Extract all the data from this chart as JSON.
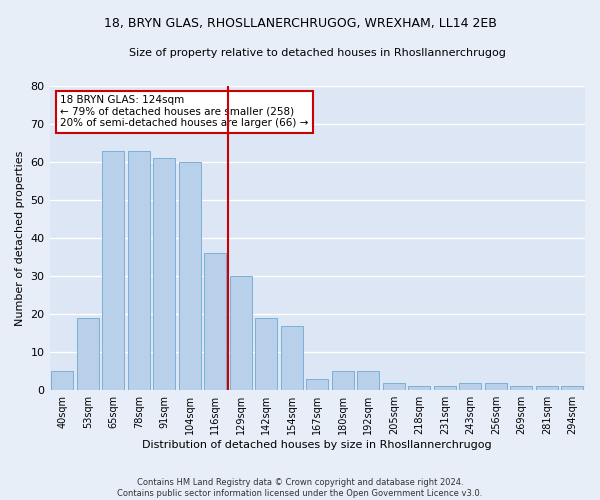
{
  "title": "18, BRYN GLAS, RHOSLLANERCHRUGOG, WREXHAM, LL14 2EB",
  "subtitle": "Size of property relative to detached houses in Rhosllannerchrugog",
  "xlabel": "Distribution of detached houses by size in Rhosllannerchrugog",
  "ylabel": "Number of detached properties",
  "footer1": "Contains HM Land Registry data © Crown copyright and database right 2024.",
  "footer2": "Contains public sector information licensed under the Open Government Licence v3.0.",
  "categories": [
    "40sqm",
    "53sqm",
    "65sqm",
    "78sqm",
    "91sqm",
    "104sqm",
    "116sqm",
    "129sqm",
    "142sqm",
    "154sqm",
    "167sqm",
    "180sqm",
    "192sqm",
    "205sqm",
    "218sqm",
    "231sqm",
    "243sqm",
    "256sqm",
    "269sqm",
    "281sqm",
    "294sqm"
  ],
  "values": [
    5,
    19,
    63,
    63,
    61,
    60,
    36,
    30,
    19,
    17,
    3,
    5,
    5,
    2,
    1,
    1,
    2,
    2,
    1,
    1,
    1
  ],
  "bar_color": "#b8d0ea",
  "bar_edge_color": "#7aafd4",
  "bg_color": "#dce6f5",
  "fig_color": "#e8eef8",
  "grid_color": "#ffffff",
  "red_line_x": 6.5,
  "annotation_title": "18 BRYN GLAS: 124sqm",
  "annotation_line1": "← 79% of detached houses are smaller (258)",
  "annotation_line2": "20% of semi-detached houses are larger (66) →",
  "annotation_box_color": "#ffffff",
  "annotation_border_color": "#cc0000",
  "red_line_color": "#cc0000",
  "ylim": [
    0,
    80
  ],
  "yticks": [
    0,
    10,
    20,
    30,
    40,
    50,
    60,
    70,
    80
  ]
}
